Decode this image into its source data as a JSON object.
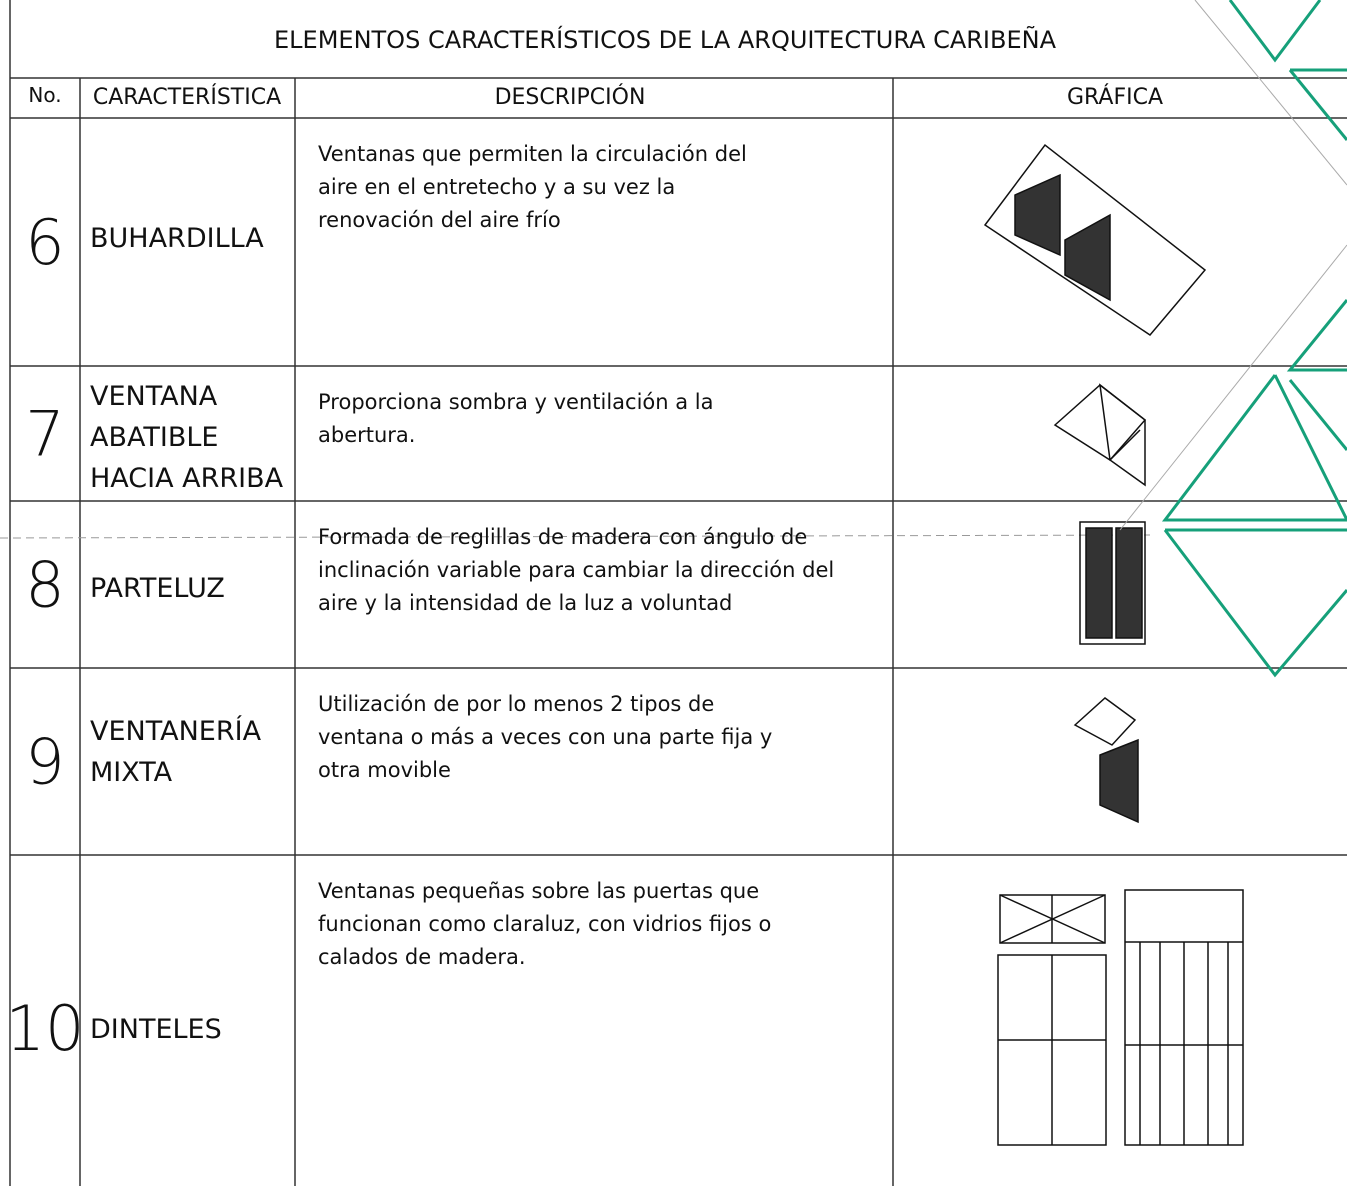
{
  "title": "ELEMENTOS CARACTERÍSTICOS DE LA ARQUITECTURA CARIBEÑA",
  "header": {
    "no": "No.",
    "characteristic": "CARACTERÍSTICA",
    "description": "DESCRIPCIÓN",
    "graphic": "GRÁFICA"
  },
  "rows": [
    {
      "no": "6",
      "characteristic": [
        "BUHARDILLA"
      ],
      "description": [
        "Ventanas que permiten la circulación del",
        "aire en el entretecho y a su vez la",
        "renovación del aire frío"
      ]
    },
    {
      "no": "7",
      "characteristic": [
        "VENTANA",
        "ABATIBLE",
        "HACIA ARRIBA"
      ],
      "description": [
        "Proporciona sombra y ventilación a la",
        "abertura."
      ]
    },
    {
      "no": "8",
      "characteristic": [
        "PARTELUZ"
      ],
      "description": [
        "Formada de reglillas de madera con ángulo de",
        "inclinación variable para cambiar la dirección del",
        "aire y la intensidad de la luz a voluntad"
      ]
    },
    {
      "no": "9",
      "characteristic": [
        "VENTANERÍA",
        "MIXTA"
      ],
      "description": [
        "Utilización de por lo menos 2 tipos de",
        "ventana o más a veces con una parte fija y",
        "otra movible"
      ]
    },
    {
      "no": "10",
      "characteristic": [
        "DINTELES"
      ],
      "description": [
        "Ventanas pequeñas sobre las puertas que",
        "funcionan como claraluz, con vidrios fijos o",
        "calados de madera."
      ]
    }
  ]
}
